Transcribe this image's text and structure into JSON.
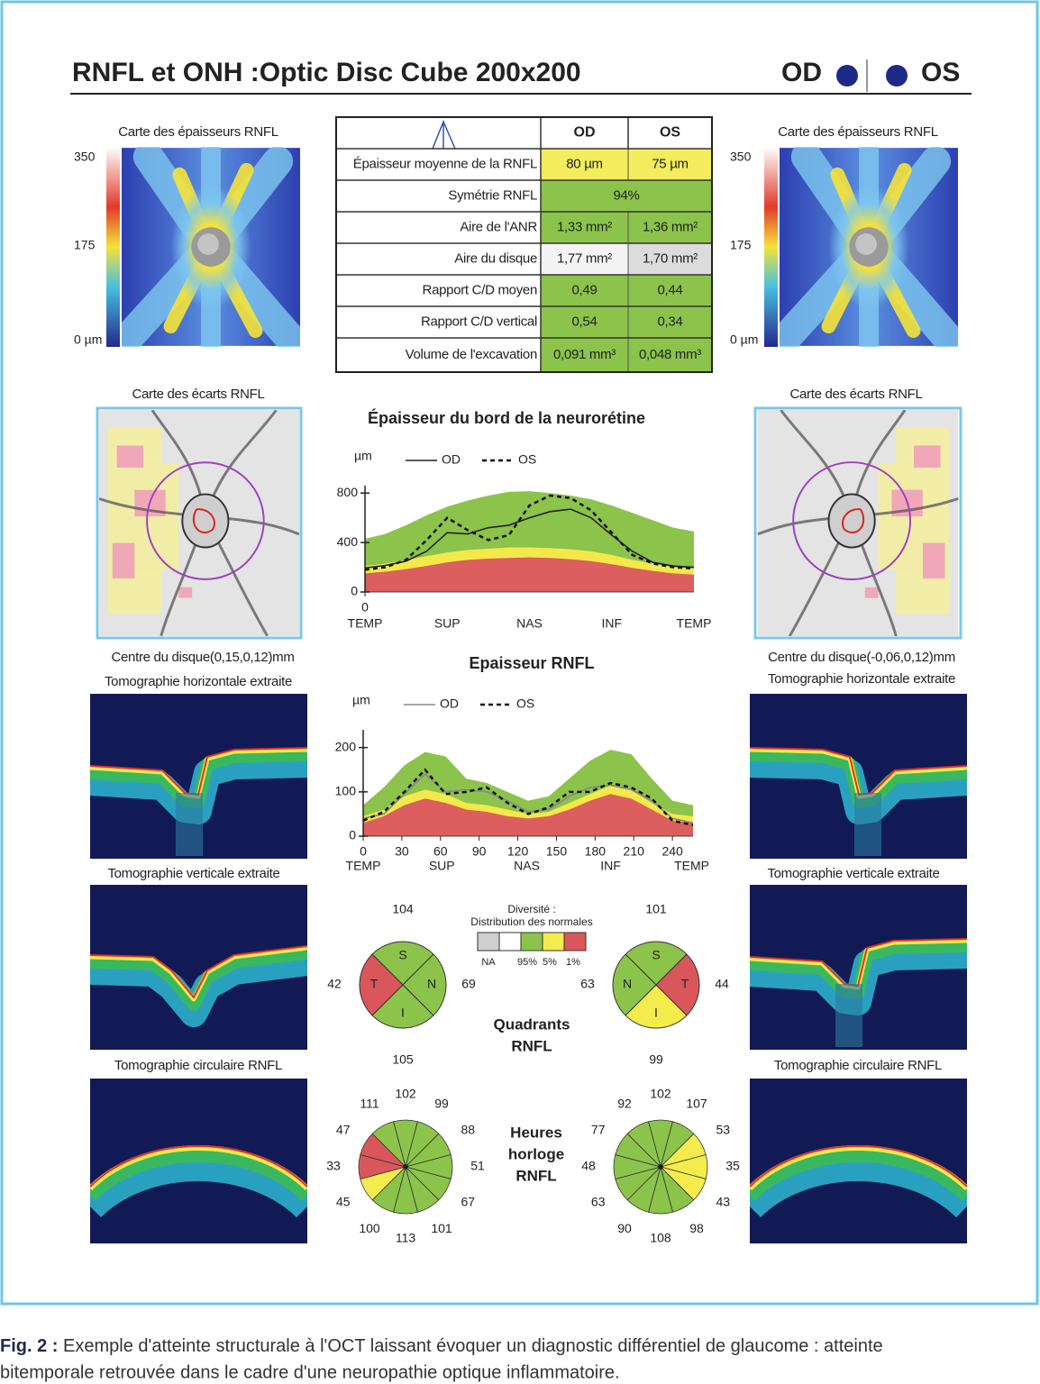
{
  "header": {
    "title": "RNFL et ONH :Optic Disc Cube 200x200",
    "od": "OD",
    "os": "OS"
  },
  "thickness_map": {
    "label": "Carte des épaisseurs RNFL",
    "scale": [
      "350",
      "175",
      "0 µm"
    ]
  },
  "deviation_map": {
    "label": "Carte des écarts RNFL"
  },
  "disc_center": {
    "od": "Centre du disque(0,15,0,12)mm",
    "os": "Centre du disque(-0,06,0,12)mm"
  },
  "tomography": {
    "horizontal": "Tomographie horizontale extraite",
    "vertical": "Tomographie verticale extraite",
    "circular": "Tomographie circulaire RNFL"
  },
  "table": {
    "header": [
      "OD",
      "OS"
    ],
    "rows": [
      [
        "Épaisseur moyenne de la RNFL",
        "80 µm",
        "75 µm"
      ],
      [
        "Symétrie RNFL",
        "94%"
      ],
      [
        "Aire de l'ANR",
        "1,33 mm²",
        "1,36 mm²"
      ],
      [
        "Aire du disque",
        "1,77 mm²",
        "1,70 mm²"
      ],
      [
        "Rapport C/D moyen",
        "0,49",
        "0,44"
      ],
      [
        "Rapport C/D vertical",
        "0,54",
        "0,34"
      ],
      [
        "Volume de l'excavation",
        "0,091 mm³",
        "0,048 mm³"
      ]
    ],
    "cell_colors": [
      [
        "#f3ec5c",
        "#f3ec5c"
      ],
      [
        "#8cc34a"
      ],
      [
        "#8cc34a",
        "#8cc34a"
      ],
      [
        "#f4f4f4",
        "#dcdcdc"
      ],
      [
        "#8cc34a",
        "#8cc34a"
      ],
      [
        "#8cc34a",
        "#8cc34a"
      ],
      [
        "#8cc34a",
        "#8cc34a"
      ]
    ]
  },
  "chart_data": [
    {
      "type": "line",
      "title": "Épaisseur du bord de la neurorétine",
      "y_label": "µm",
      "x": [
        0,
        16,
        32,
        48,
        64,
        80,
        96,
        112,
        128,
        144,
        160,
        176,
        192,
        208,
        224,
        240,
        256
      ],
      "series": [
        {
          "name": "OD",
          "color": "#222222",
          "dash": false,
          "values": [
            195,
            215,
            250,
            330,
            480,
            470,
            520,
            540,
            600,
            650,
            670,
            600,
            460,
            330,
            240,
            210,
            200
          ]
        },
        {
          "name": "OS",
          "color": "#111111",
          "dash": true,
          "values": [
            180,
            200,
            260,
            420,
            600,
            500,
            420,
            460,
            700,
            780,
            760,
            660,
            480,
            300,
            230,
            200,
            190
          ]
        }
      ],
      "bands": [
        {
          "color": "#8cc34a",
          "values": [
            430,
            470,
            540,
            620,
            690,
            740,
            780,
            810,
            815,
            800,
            780,
            750,
            700,
            640,
            580,
            520,
            490
          ]
        },
        {
          "color": "#f3e94a",
          "values": [
            210,
            230,
            260,
            290,
            320,
            340,
            350,
            360,
            360,
            355,
            345,
            330,
            300,
            260,
            230,
            200,
            190
          ]
        },
        {
          "color": "#dd5e5e",
          "values": [
            150,
            165,
            185,
            210,
            240,
            260,
            270,
            275,
            280,
            275,
            265,
            250,
            225,
            195,
            170,
            150,
            140
          ]
        }
      ],
      "xlim": [
        0,
        256
      ],
      "ylim": [
        0,
        860
      ],
      "yticks": [
        0,
        400,
        800
      ],
      "xticks": [
        0
      ],
      "x_regions": [
        {
          "value": 0,
          "label": "TEMP"
        },
        {
          "value": 64,
          "label": "SUP"
        },
        {
          "value": 128,
          "label": "NAS"
        },
        {
          "value": 192,
          "label": "INF"
        },
        {
          "value": 256,
          "label": "TEMP"
        }
      ]
    },
    {
      "type": "line",
      "title": "Epaisseur RNFL",
      "y_label": "µm",
      "x": [
        0,
        16,
        32,
        48,
        64,
        80,
        96,
        112,
        128,
        144,
        160,
        176,
        192,
        208,
        224,
        240,
        256
      ],
      "series": [
        {
          "name": "OD",
          "color": "#888888",
          "dash": false,
          "values": [
            40,
            50,
            95,
            140,
            100,
            105,
            100,
            80,
            55,
            60,
            90,
            110,
            115,
            105,
            80,
            40,
            30
          ]
        },
        {
          "name": "OS",
          "color": "#111111",
          "dash": true,
          "values": [
            35,
            55,
            100,
            150,
            95,
            100,
            110,
            75,
            50,
            65,
            100,
            100,
            120,
            110,
            85,
            35,
            25
          ]
        }
      ],
      "bands": [
        {
          "color": "#8cc34a",
          "values": [
            70,
            110,
            160,
            190,
            180,
            130,
            120,
            100,
            80,
            90,
            130,
            170,
            195,
            185,
            130,
            80,
            70
          ]
        },
        {
          "color": "#f3e94a",
          "values": [
            45,
            60,
            90,
            105,
            95,
            75,
            70,
            60,
            50,
            55,
            75,
            95,
            115,
            105,
            75,
            50,
            45
          ]
        },
        {
          "color": "#dd5e5e",
          "values": [
            30,
            45,
            70,
            85,
            75,
            60,
            55,
            45,
            40,
            45,
            60,
            80,
            95,
            85,
            60,
            35,
            30
          ]
        }
      ],
      "xlim": [
        0,
        256
      ],
      "ylim": [
        0,
        240
      ],
      "yticks": [
        0,
        100,
        200
      ],
      "xticks": [
        0,
        30,
        60,
        90,
        120,
        150,
        180,
        210,
        240
      ],
      "x_regions": [
        {
          "value": 0,
          "label": "TEMP"
        },
        {
          "value": 61,
          "label": "SUP"
        },
        {
          "value": 127,
          "label": "NAS"
        },
        {
          "value": 192,
          "label": "INF"
        },
        {
          "value": 255,
          "label": "TEMP"
        }
      ]
    }
  ],
  "quadrants": {
    "title": [
      "Quadrants",
      "RNFL"
    ],
    "legend": {
      "title": [
        "Diversité :",
        "Distribution des normales"
      ],
      "colors": [
        "#cfcfcf",
        "#ffffff",
        "#8cc34a",
        "#f3ec4c",
        "#d9575a"
      ],
      "labels": [
        "NA",
        "95%",
        "5%",
        "1%"
      ]
    },
    "od": {
      "labels": [
        "S",
        "N",
        "I",
        "T"
      ],
      "values": [
        104,
        69,
        105,
        42
      ],
      "colors": [
        "#8cc34a",
        "#8cc34a",
        "#8cc34a",
        "#d9575a"
      ]
    },
    "os": {
      "labels": [
        "S",
        "T",
        "I",
        "N"
      ],
      "values": [
        101,
        44,
        99,
        63
      ],
      "colors": [
        "#8cc34a",
        "#d9575a",
        "#f3ec4c",
        "#8cc34a"
      ]
    }
  },
  "clock_hours": {
    "title": [
      "Heures",
      "horloge",
      "RNFL"
    ],
    "od": {
      "values": [
        102,
        99,
        88,
        51,
        67,
        101,
        113,
        100,
        45,
        33,
        47,
        111
      ],
      "colors": [
        "#8cc34a",
        "#8cc34a",
        "#8cc34a",
        "#8cc34a",
        "#8cc34a",
        "#8cc34a",
        "#8cc34a",
        "#8cc34a",
        "#f3ec4c",
        "#d9575a",
        "#d9575a",
        "#8cc34a"
      ]
    },
    "os": {
      "values": [
        102,
        107,
        53,
        35,
        43,
        98,
        108,
        90,
        63,
        48,
        77,
        92
      ],
      "colors": [
        "#8cc34a",
        "#8cc34a",
        "#f3ec4c",
        "#f3ec4c",
        "#f3ec4c",
        "#8cc34a",
        "#8cc34a",
        "#8cc34a",
        "#8cc34a",
        "#8cc34a",
        "#8cc34a",
        "#8cc34a"
      ]
    }
  },
  "caption": {
    "label": "Fig. 2 :",
    "lines": [
      "Exemple d'atteinte structurale à l'OCT laissant évoquer un diagnostic différentiel de glaucome : atteinte",
      "bitemporale retrouvée dans le cadre d'une neuropathie optique inflammatoire."
    ]
  }
}
